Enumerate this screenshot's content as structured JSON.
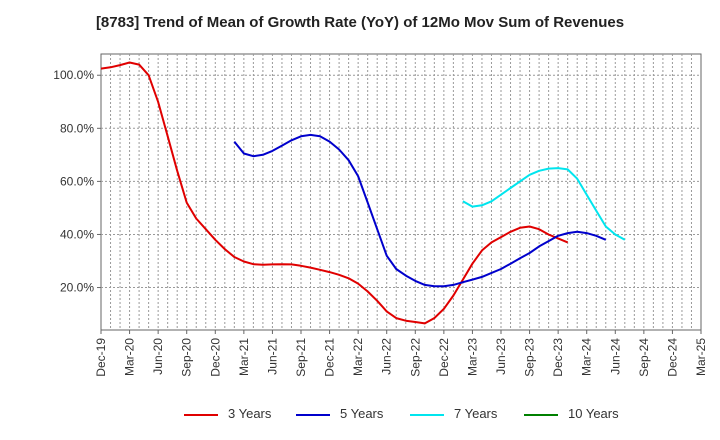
{
  "chart_data": {
    "type": "line",
    "title": "[8783]  Trend of Mean of Growth Rate (YoY) of 12Mo Mov Sum of Revenues",
    "xlabel": "",
    "ylabel": "",
    "x_ticks": [
      "Dec-19",
      "Mar-20",
      "Jun-20",
      "Sep-20",
      "Dec-20",
      "Mar-21",
      "Jun-21",
      "Sep-21",
      "Dec-21",
      "Mar-22",
      "Jun-22",
      "Sep-22",
      "Dec-22",
      "Mar-23",
      "Jun-23",
      "Sep-23",
      "Dec-23",
      "Mar-24",
      "Jun-24",
      "Sep-24",
      "Dec-24",
      "Mar-25"
    ],
    "y_ticks": [
      "20.0%",
      "40.0%",
      "60.0%",
      "80.0%",
      "100.0%"
    ],
    "y_tick_values": [
      20,
      40,
      60,
      80,
      100
    ],
    "ylim": [
      4,
      108
    ],
    "grid": true,
    "legend_position": "bottom",
    "series": [
      {
        "name": "3 Years",
        "color": "#e00000",
        "start_index": 0,
        "values": [
          102.5,
          103.0,
          103.8,
          104.8,
          104.0,
          100.0,
          90.0,
          77.0,
          64.0,
          52.0,
          46.0,
          42.0,
          38.0,
          34.5,
          31.5,
          29.8,
          28.8,
          28.6,
          28.7,
          28.8,
          28.7,
          28.2,
          27.5,
          26.7,
          25.8,
          24.8,
          23.5,
          21.5,
          18.5,
          15.0,
          11.0,
          8.5,
          7.5,
          7.0,
          6.5,
          8.5,
          12.0,
          17.0,
          23.0,
          29.0,
          34.0,
          37.0,
          39.0,
          41.0,
          42.5,
          43.0,
          42.0,
          40.0,
          38.5,
          37.0
        ]
      },
      {
        "name": "5 Years",
        "color": "#0000cc",
        "start_index": 14,
        "values": [
          75.0,
          70.5,
          69.5,
          70.0,
          71.5,
          73.5,
          75.5,
          77.0,
          77.5,
          77.0,
          75.0,
          72.0,
          68.0,
          62.0,
          52.0,
          42.0,
          32.0,
          27.0,
          24.5,
          22.5,
          21.0,
          20.5,
          20.5,
          21.0,
          22.0,
          23.0,
          24.0,
          25.5,
          27.0,
          29.0,
          31.0,
          33.0,
          35.5,
          37.5,
          39.5,
          40.5,
          41.0,
          40.5,
          39.5,
          38.0
        ]
      },
      {
        "name": "7 Years",
        "color": "#00e5ee",
        "start_index": 38,
        "values": [
          52.5,
          50.5,
          51.0,
          52.5,
          55.0,
          57.5,
          60.0,
          62.5,
          64.0,
          64.8,
          65.0,
          64.5,
          61.0,
          55.0,
          49.0,
          43.0,
          40.0,
          38.0
        ]
      },
      {
        "name": "10 Years",
        "color": "#008000",
        "start_index": 0,
        "values": []
      }
    ]
  }
}
